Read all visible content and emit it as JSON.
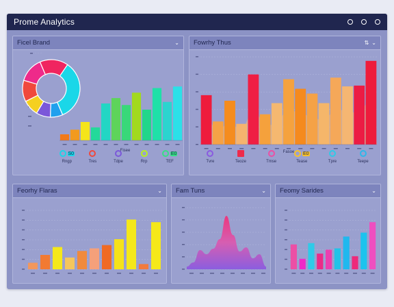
{
  "app": {
    "title": "Prome Analytics",
    "window_controls": [
      "settings-icon",
      "minimize-icon",
      "close-icon"
    ]
  },
  "colors": {
    "titlebar": "#20264f",
    "canvas": "#8c93c5",
    "panel": "#9aa0cf",
    "panel_header": "#7d84bd"
  },
  "panels": {
    "top_left": {
      "title": "Ficel Brand",
      "menu_icon": "chevron-down-icon",
      "legend": [
        {
          "icon": "cyan-circle-icon",
          "tag": "S0",
          "label": "Rngp",
          "color": "#1ad7e8"
        },
        {
          "icon": "target-icon",
          "tag": "",
          "label": "Tres",
          "color": "#f0483c"
        },
        {
          "icon": "pen-icon",
          "tag": "",
          "label": "Tdpe",
          "color": "#7b58d9"
        },
        {
          "icon": "lime-circle-icon",
          "tag": "",
          "label": "Rrp",
          "color": "#b6f21e"
        },
        {
          "icon": "green-tag-icon",
          "tag": "E0",
          "label": "TEF",
          "color": "#36e084"
        }
      ]
    },
    "top_right": {
      "title": "Fowrhy Thus",
      "menu_icons": [
        "sort-icon",
        "chevron-down-icon"
      ],
      "legend": [
        {
          "icon": "purple-circle-icon",
          "tag": "",
          "label": "Tvre",
          "color": "#8a5ae0"
        },
        {
          "icon": "red-square-icon",
          "tag": "",
          "label": "Teoze",
          "color": "#ee2a4b"
        },
        {
          "icon": "pink-circle-icon",
          "tag": "",
          "label": "Tmse",
          "color": "#ec4fa5"
        },
        {
          "icon": "orange-tag-icon",
          "tag": "E0",
          "label": "Tease",
          "color": "#f8c22a"
        },
        {
          "icon": "cyan-circle-icon",
          "tag": "",
          "label": "Tpre",
          "color": "#2ecbe8"
        },
        {
          "icon": "fish-icon",
          "tag": "",
          "label": "Teepe",
          "color": "#2db8ea"
        }
      ]
    },
    "bottom_left": {
      "title": "Feorhy Flaras",
      "menu_icon": "chevron-down-icon"
    },
    "bottom_mid": {
      "title": "Fam Tuns",
      "menu_icon": "chevron-down-icon"
    },
    "bottom_right": {
      "title": "Feomy Sarides",
      "menu_icon": "chevron-down-icon"
    }
  },
  "chart_data": [
    {
      "id": "top_left_donut",
      "type": "pie",
      "values": [
        34,
        7,
        8,
        9,
        12,
        14,
        16
      ],
      "colors": [
        "#1ad7e8",
        "#1fa0ee",
        "#7b58d9",
        "#f5d020",
        "#f0483c",
        "#ee2a8a",
        "#f02560"
      ]
    },
    {
      "id": "top_left_bars",
      "type": "bar",
      "x_label": "Fisee",
      "values": [
        8,
        14,
        24,
        17,
        48,
        55,
        46,
        62,
        40,
        68,
        50,
        70
      ],
      "colors": [
        "#f27a1a",
        "#f29a1e",
        "#f5e51a",
        "#24d99a",
        "#22d6c4",
        "#5ed45a",
        "#38d879",
        "#a2d91e",
        "#22d68a",
        "#1fe0a8",
        "#2bd4cf",
        "#2ce0e8"
      ],
      "ylim": [
        0,
        80
      ]
    },
    {
      "id": "top_right_bars",
      "type": "bar",
      "x_label": "Fasoe",
      "values": [
        62,
        29,
        55,
        26,
        88,
        38,
        52,
        82,
        70,
        64,
        52,
        84,
        73,
        74,
        105
      ],
      "colors": [
        "#ee1c3c",
        "#f5a246",
        "#f58c1e",
        "#f5b46e",
        "#ef1e44",
        "#f5a13c",
        "#f5b870",
        "#f5a23e",
        "#f58a1e",
        "#f5a246",
        "#f5b66a",
        "#f5a859",
        "#f5b672",
        "#ec1c44",
        "#ee1c3c"
      ],
      "area": [
        0,
        0,
        0,
        0,
        0,
        20,
        35,
        0,
        0,
        0,
        0,
        50,
        30,
        0,
        0
      ],
      "ylim": [
        0,
        110
      ]
    },
    {
      "id": "bottom_left_bars",
      "type": "bar",
      "values": [
        10,
        22,
        34,
        18,
        28,
        32,
        37,
        46,
        76,
        8,
        72
      ],
      "colors": [
        "#f2975c",
        "#f27a32",
        "#f5e81a",
        "#f5c65c",
        "#f08a3c",
        "#f5a07a",
        "#f06a24",
        "#f5e21a",
        "#f5e81a",
        "#f27a3c",
        "#f5e81a"
      ],
      "ylim": [
        0,
        90
      ]
    },
    {
      "id": "bottom_mid_area",
      "type": "area",
      "x": [
        0,
        1,
        2,
        3,
        4,
        5,
        6,
        7,
        8,
        9,
        10,
        11,
        12
      ],
      "y": [
        4,
        10,
        28,
        22,
        30,
        44,
        78,
        50,
        26,
        32,
        16,
        22,
        4
      ],
      "ylim": [
        0,
        90
      ]
    },
    {
      "id": "bottom_right_bars",
      "type": "bar",
      "values": [
        38,
        16,
        40,
        24,
        30,
        32,
        50,
        20,
        56,
        72
      ],
      "colors": [
        "#ec4fa5",
        "#ee2ac8",
        "#2ecbe8",
        "#ec2a88",
        "#ec3fb0",
        "#22c3e8",
        "#20b8ee",
        "#ee2a7a",
        "#1cc3ee",
        "#ee4fc0"
      ],
      "ylim": [
        0,
        90
      ]
    }
  ]
}
